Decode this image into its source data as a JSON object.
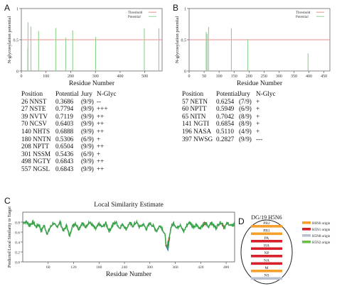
{
  "panels": {
    "a": "A",
    "b": "B",
    "c": "C",
    "d": "D"
  },
  "colors": {
    "threshold": "#f08a8a",
    "potential": "#8fd08f",
    "similarity_green": "#3aa34a",
    "similarity_red": "#d42020",
    "similarity_blue": "#3b6fd1",
    "h6n6": "#f5a02a",
    "h5n1": "#d6202a",
    "h5n8": "#b8c0cf",
    "h5n2": "#6abf45"
  },
  "chart_data": [
    {
      "id": "A",
      "type": "bar",
      "ylabel": "N-glycosylation potential",
      "xlabel": "Residue Number",
      "xlim": [
        0,
        570
      ],
      "ylim": [
        0,
        1
      ],
      "xticks": [
        0,
        100,
        200,
        300,
        400,
        500
      ],
      "yticks": [
        0,
        0.5,
        1
      ],
      "threshold": 0.5,
      "legend": {
        "placement": "top-right",
        "threshold_label": "Threshold",
        "potential_label": "Potential"
      },
      "x": [
        26,
        27,
        39,
        70,
        140,
        180,
        208,
        301,
        498,
        557
      ],
      "values": [
        0.3686,
        0.7794,
        0.7119,
        0.6403,
        0.6888,
        0.5306,
        0.6504,
        0.5436,
        0.6843,
        0.6843
      ]
    },
    {
      "id": "B",
      "type": "bar",
      "ylabel": "N-glycosylation potential",
      "xlabel": "Residue Number",
      "xlim": [
        0,
        470
      ],
      "ylim": [
        0,
        1
      ],
      "xticks": [
        0,
        50,
        100,
        150,
        200,
        250,
        300,
        350,
        400,
        450
      ],
      "yticks": [
        0,
        0.5,
        1
      ],
      "threshold": 0.5,
      "legend": {
        "placement": "top-right",
        "threshold_label": "Threshold",
        "potential_label": "Potential"
      },
      "x": [
        57,
        60,
        65,
        141,
        196,
        397
      ],
      "values": [
        0.6254,
        0.5949,
        0.7042,
        0.6854,
        0.511,
        0.2827
      ]
    },
    {
      "id": "C",
      "type": "line",
      "title": "Local Similarity Estimate",
      "ylabel": "Predicted Local Similarity to Target",
      "xlabel": "Residue Number",
      "xlim": [
        0,
        500
      ],
      "ylim": [
        0,
        1
      ],
      "xticks": [
        60,
        120,
        180,
        240,
        300,
        360,
        420,
        480
      ],
      "yticks": [
        0.0,
        0.2,
        0.4,
        0.6,
        0.8
      ],
      "series_anchors": [
        [
          1,
          0.79
        ],
        [
          8,
          0.81
        ],
        [
          16,
          0.74
        ],
        [
          24,
          0.8
        ],
        [
          32,
          0.7
        ],
        [
          38,
          0.76
        ],
        [
          44,
          0.62
        ],
        [
          50,
          0.74
        ],
        [
          58,
          0.56
        ],
        [
          64,
          0.68
        ],
        [
          72,
          0.78
        ],
        [
          80,
          0.7
        ],
        [
          88,
          0.8
        ],
        [
          96,
          0.62
        ],
        [
          104,
          0.74
        ],
        [
          110,
          0.5
        ],
        [
          116,
          0.7
        ],
        [
          124,
          0.78
        ],
        [
          132,
          0.66
        ],
        [
          140,
          0.78
        ],
        [
          148,
          0.7
        ],
        [
          156,
          0.8
        ],
        [
          164,
          0.74
        ],
        [
          172,
          0.66
        ],
        [
          180,
          0.76
        ],
        [
          188,
          0.7
        ],
        [
          196,
          0.78
        ],
        [
          204,
          0.62
        ],
        [
          212,
          0.74
        ],
        [
          220,
          0.8
        ],
        [
          228,
          0.68
        ],
        [
          236,
          0.76
        ],
        [
          244,
          0.66
        ],
        [
          252,
          0.78
        ],
        [
          260,
          0.72
        ],
        [
          268,
          0.8
        ],
        [
          276,
          0.7
        ],
        [
          284,
          0.76
        ],
        [
          292,
          0.66
        ],
        [
          300,
          0.78
        ],
        [
          308,
          0.72
        ],
        [
          316,
          0.62
        ],
        [
          324,
          0.74
        ],
        [
          330,
          0.66
        ],
        [
          336,
          0.52
        ],
        [
          339,
          0.3
        ],
        [
          342,
          0.26
        ],
        [
          345,
          0.46
        ],
        [
          350,
          0.7
        ],
        [
          356,
          0.78
        ],
        [
          364,
          0.68
        ],
        [
          372,
          0.76
        ],
        [
          380,
          0.6
        ],
        [
          386,
          0.72
        ],
        [
          394,
          0.8
        ],
        [
          402,
          0.7
        ],
        [
          410,
          0.76
        ],
        [
          418,
          0.66
        ],
        [
          426,
          0.74
        ],
        [
          432,
          0.78
        ],
        [
          438,
          0.7
        ],
        [
          444,
          0.8
        ],
        [
          450,
          0.74
        ],
        [
          456,
          0.68
        ],
        [
          462,
          0.76
        ],
        [
          468,
          0.8
        ],
        [
          476,
          0.7
        ],
        [
          484,
          0.78
        ],
        [
          492,
          0.72
        ],
        [
          500,
          0.76
        ]
      ],
      "red_segments": [
        [
          338,
          346
        ],
        [
          425,
          432
        ],
        [
          470,
          476
        ]
      ],
      "blue_segments": [
        [
          339,
          344
        ]
      ]
    }
  ],
  "table_a": {
    "headers": [
      "Position",
      "Potential",
      "Jury",
      "N-Glyc"
    ],
    "rows": [
      [
        "26 NNST",
        "0.3686",
        "(9/9)",
        "--"
      ],
      [
        "27 NSTE",
        "0.7794",
        "(9/9)",
        "+++"
      ],
      [
        "39 NVTV",
        "0.7119",
        "(9/9)",
        "++"
      ],
      [
        "70 NCSV",
        "0.6403",
        "(9/9)",
        "++"
      ],
      [
        "140 NHTS",
        "0.6888",
        "(9/9)",
        "++"
      ],
      [
        "180 NNTN",
        "0.5306",
        "(6/9)",
        "+"
      ],
      [
        "208 NPTT",
        "0.6504",
        "(9/9)",
        "++"
      ],
      [
        "301 NSSM",
        "0.5436",
        "(6/9)",
        "+"
      ],
      [
        "498 NGTY",
        "0.6843",
        "(9/9)",
        "++"
      ],
      [
        "557 NGSL",
        "0.6843",
        "(9/9)",
        "++"
      ]
    ]
  },
  "table_b": {
    "headers": [
      "Position",
      "Potential",
      "Jury",
      "N-Glyc"
    ],
    "rows": [
      [
        "57 NETN",
        "0.6254",
        "(7/9)",
        "+"
      ],
      [
        "60 NPTT",
        "0.5949",
        "(6/9)",
        "+"
      ],
      [
        "65 NITN",
        "0.7042",
        "(8/9)",
        "+"
      ],
      [
        "141 NGTI",
        "0.6854",
        "(8/9)",
        "+"
      ],
      [
        "196 NASA",
        "0.5110",
        "(4/9)",
        "+"
      ],
      [
        "397 NWSG",
        "0.2827",
        "(9/9)",
        "---"
      ]
    ]
  },
  "diagram_d": {
    "title": "DG/19   H5N6",
    "segments": [
      {
        "label": "PB2",
        "origin": "h6n6"
      },
      {
        "label": "PB1",
        "origin": "h6n6"
      },
      {
        "label": "PA",
        "origin": "h5n1"
      },
      {
        "label": "HA",
        "origin": "h5n1"
      },
      {
        "label": "NP",
        "origin": "h5n1"
      },
      {
        "label": "NA",
        "origin": "h5n1"
      },
      {
        "label": "M",
        "origin": "h6n6"
      },
      {
        "label": "NS",
        "origin": "h5n8"
      }
    ],
    "legend": [
      {
        "key": "h6n6",
        "label": "H6N6 origin"
      },
      {
        "key": "h5n1",
        "label": "H5N1 origin"
      },
      {
        "key": "h5n8",
        "label": "H5N8 origin"
      },
      {
        "key": "h5n2",
        "label": "H5N2 origin"
      }
    ]
  }
}
